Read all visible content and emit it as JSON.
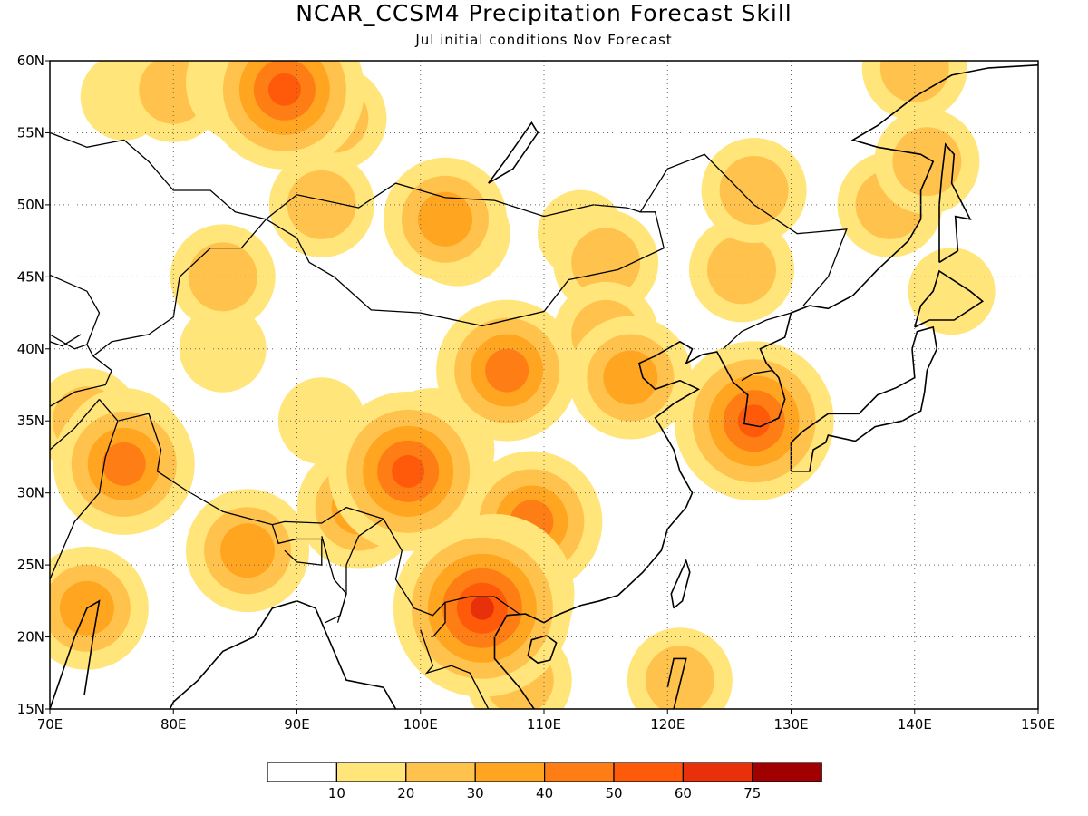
{
  "title": "NCAR_CCSM4 Precipitation Forecast Skill",
  "subtitle": "Jul initial conditions  Nov Forecast",
  "map": {
    "lon_range": [
      70,
      150
    ],
    "lat_range": [
      15,
      60
    ],
    "lon_ticks": [
      "70E",
      "80E",
      "90E",
      "100E",
      "110E",
      "120E",
      "130E",
      "140E",
      "150E"
    ],
    "lat_ticks": [
      "15N",
      "20N",
      "25N",
      "30N",
      "35N",
      "40N",
      "45N",
      "50N",
      "55N",
      "60N"
    ],
    "grid": true
  },
  "colorbar": {
    "levels": [
      "10",
      "20",
      "30",
      "40",
      "50",
      "60",
      "75"
    ],
    "colors": [
      "#ffffff",
      "#ffe57a",
      "#ffc34d",
      "#ffa520",
      "#ff7d15",
      "#ff5a0a",
      "#e8300a",
      "#a00000"
    ]
  },
  "skill_regions": [
    {
      "lon": 89,
      "lat": 58,
      "level": 5
    },
    {
      "lon": 88,
      "lat": 58,
      "level": 4
    },
    {
      "lon": 86,
      "lat": 58.5,
      "level": 3
    },
    {
      "lon": 80,
      "lat": 58,
      "level": 2
    },
    {
      "lon": 76,
      "lat": 57.5,
      "level": 1
    },
    {
      "lon": 93,
      "lat": 56,
      "level": 2
    },
    {
      "lon": 138,
      "lat": 50,
      "level": 2
    },
    {
      "lon": 141,
      "lat": 53,
      "level": 2
    },
    {
      "lon": 140,
      "lat": 59.5,
      "level": 2
    },
    {
      "lon": 102,
      "lat": 49,
      "level": 3
    },
    {
      "lon": 103,
      "lat": 48,
      "level": 2
    },
    {
      "lon": 115,
      "lat": 46,
      "level": 2
    },
    {
      "lon": 126,
      "lat": 45.5,
      "level": 2
    },
    {
      "lon": 127,
      "lat": 51,
      "level": 2
    },
    {
      "lon": 113,
      "lat": 48,
      "level": 1
    },
    {
      "lon": 107,
      "lat": 39,
      "level": 3
    },
    {
      "lon": 107,
      "lat": 38.5,
      "level": 4
    },
    {
      "lon": 117,
      "lat": 38,
      "level": 3
    },
    {
      "lon": 115,
      "lat": 41,
      "level": 2
    },
    {
      "lon": 100,
      "lat": 32,
      "level": 4
    },
    {
      "lon": 99,
      "lat": 31.5,
      "level": 5
    },
    {
      "lon": 101,
      "lat": 33,
      "level": 3
    },
    {
      "lon": 109,
      "lat": 28,
      "level": 4
    },
    {
      "lon": 108,
      "lat": 27,
      "level": 3
    },
    {
      "lon": 106,
      "lat": 23,
      "level": 5
    },
    {
      "lon": 105,
      "lat": 22,
      "level": 6
    },
    {
      "lon": 104,
      "lat": 21,
      "level": 3
    },
    {
      "lon": 95,
      "lat": 29,
      "level": 3
    },
    {
      "lon": 76,
      "lat": 33,
      "level": 3
    },
    {
      "lon": 76,
      "lat": 32,
      "level": 4
    },
    {
      "lon": 73,
      "lat": 35,
      "level": 2
    },
    {
      "lon": 73,
      "lat": 22,
      "level": 3
    },
    {
      "lon": 86,
      "lat": 26,
      "level": 3
    },
    {
      "lon": 126,
      "lat": 36,
      "level": 3
    },
    {
      "lon": 127,
      "lat": 35,
      "level": 5
    },
    {
      "lon": 84,
      "lat": 45,
      "level": 2
    },
    {
      "lon": 92,
      "lat": 50,
      "level": 2
    },
    {
      "lon": 92,
      "lat": 35,
      "level": 1
    },
    {
      "lon": 84,
      "lat": 40,
      "level": 1
    },
    {
      "lon": 121,
      "lat": 17,
      "level": 2
    },
    {
      "lon": 108,
      "lat": 17,
      "level": 2
    },
    {
      "lon": 143,
      "lat": 44,
      "level": 1
    }
  ]
}
